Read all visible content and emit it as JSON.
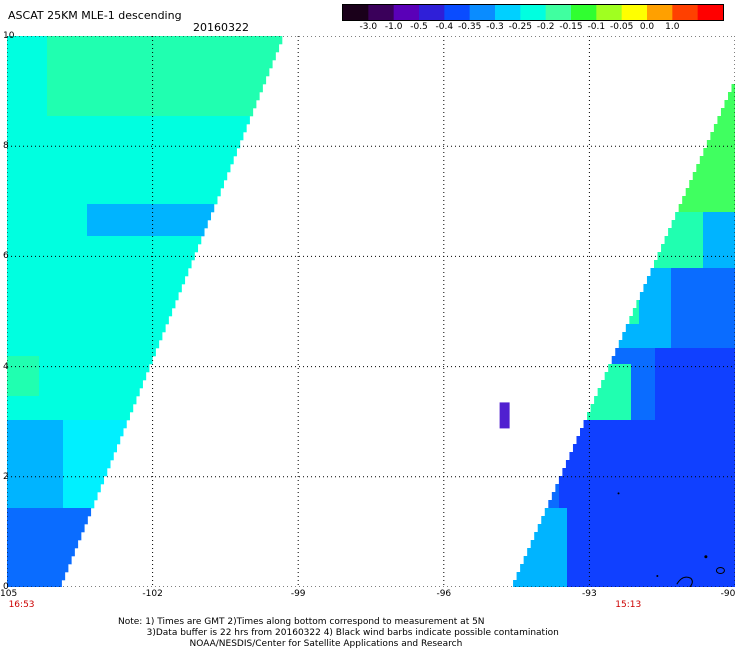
{
  "header": {
    "title": "ASCAT 25KM MLE-1 descending",
    "date": "20160322"
  },
  "colorbar": {
    "tick_labels": [
      "-3.0",
      "-1.0",
      "-0.5",
      "-0.4",
      "-0.35",
      "-0.3",
      "-0.25",
      "-0.2",
      "-0.15",
      "-0.1",
      "-0.05",
      "0.0",
      "1.0"
    ],
    "colors": [
      "#1a001a",
      "#3a005a",
      "#5a00b8",
      "#2f1fd8",
      "#0a4cff",
      "#0a8cff",
      "#00d0ff",
      "#00ffe0",
      "#40ffa0",
      "#30ff30",
      "#a0ff20",
      "#ffff00",
      "#ffa000",
      "#ff4000",
      "#ff0000"
    ]
  },
  "map": {
    "lon_range": [
      -105,
      -90
    ],
    "lat_range": [
      0,
      10
    ],
    "x_ticks": [
      "-105",
      "-102",
      "-99",
      "-96",
      "-93",
      "-90"
    ],
    "y_ticks": [
      "0",
      "2",
      "4",
      "6",
      "8",
      "10"
    ],
    "pass_times": [
      "16:53",
      "15:13"
    ],
    "field_colors": {
      "cyan": "#00ffe0",
      "light_cyan": "#00f0ff",
      "sea_green": "#20ffb0",
      "green": "#40ff60",
      "lime": "#70ff40",
      "azure": "#00b4ff",
      "blue": "#0a6cff",
      "deep_blue": "#1040ff",
      "violet": "#5020d0"
    }
  },
  "notes": {
    "line1": "Note: 1) Times are GMT 2)Times along bottom correspond to measurement at 5N",
    "line2": "3)Data buffer is 22 hrs from 20160322 4) Black wind barbs indicate possible contamination",
    "line3": "NOAA/NESDIS/Center for Satellite Applications and Research"
  }
}
